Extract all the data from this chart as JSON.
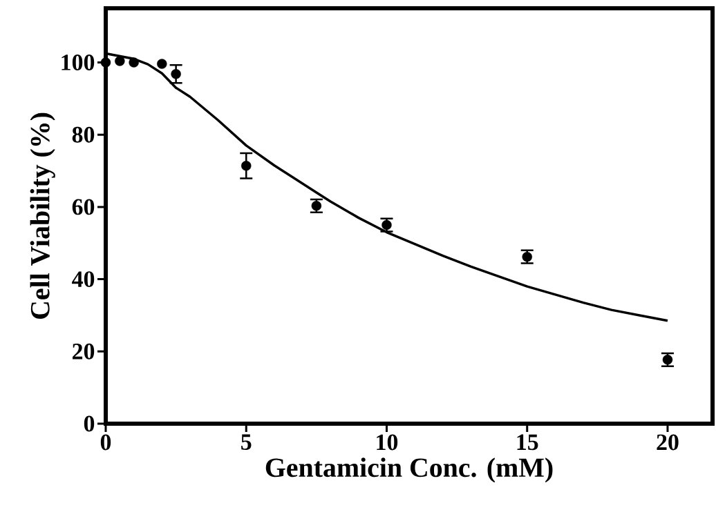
{
  "chart_data": {
    "type": "scatter",
    "xlabel": "Gentamicin Conc. (mM)",
    "ylabel": "Cell Viability (%)",
    "xlim": [
      0,
      21.6
    ],
    "ylim": [
      0,
      115
    ],
    "xticks": [
      0,
      5,
      10,
      15,
      20
    ],
    "yticks": [
      0,
      20,
      40,
      60,
      80,
      100
    ],
    "grid": false,
    "series": [
      {
        "marker": "circle",
        "color": "#000000",
        "x": [
          0,
          0.5,
          1,
          2,
          2.5,
          5,
          7.5,
          10,
          15,
          20
        ],
        "values": [
          100,
          100.4,
          100,
          99.6,
          96.8,
          71.4,
          60.3,
          55,
          46.2,
          17.7
        ],
        "errors": [
          null,
          null,
          null,
          null,
          2.5,
          3.5,
          1.8,
          1.8,
          1.8,
          1.8
        ]
      },
      {
        "type": "line",
        "color": "#000000",
        "line_style": "solid",
        "x": [
          0,
          1,
          1.5,
          2,
          2.5,
          3,
          4,
          5,
          6,
          7.5,
          8,
          9,
          10,
          12,
          13,
          15,
          17,
          18,
          19,
          20
        ],
        "values": [
          102.5,
          101,
          99.5,
          97,
          93,
          90.5,
          84,
          77,
          71.5,
          64,
          61.5,
          57,
          53,
          46.5,
          43.5,
          38,
          33.5,
          31.5,
          30,
          28.5
        ]
      }
    ]
  }
}
